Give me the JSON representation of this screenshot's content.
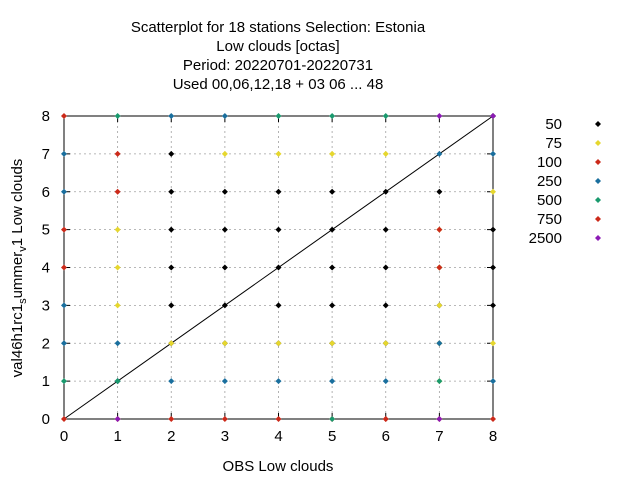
{
  "chart_data": {
    "type": "scatter",
    "title_lines": [
      "Scatterplot for   18 stations Selection: Estonia",
      "Low clouds [octas]",
      "Period: 20220701-20220731",
      "Used  00,06,12,18  + 03 06 ... 48"
    ],
    "xlabel": "OBS Low clouds",
    "ylabel": "val46h1rc1_summer_v1 Low clouds",
    "ylabel_parts": {
      "base": "val46h1rc1",
      "sub1": "s",
      "mid": "ummer",
      "sub2": "v",
      "tail": "1 Low clouds"
    },
    "xlim": [
      0,
      8
    ],
    "ylim": [
      0,
      8
    ],
    "x_ticks": [
      "0",
      "1",
      "2",
      "3",
      "4",
      "5",
      "6",
      "7",
      "8"
    ],
    "y_ticks": [
      "0",
      "1",
      "2",
      "3",
      "4",
      "5",
      "6",
      "7",
      "8"
    ],
    "grid": true,
    "diagonal": true,
    "legend_position": "right",
    "series": [
      {
        "name": "50",
        "color": "#000000",
        "points": [
          [
            1,
            1
          ],
          [
            2,
            2
          ],
          [
            3,
            3
          ],
          [
            4,
            4
          ],
          [
            5,
            5
          ],
          [
            6,
            6
          ],
          [
            2,
            3
          ],
          [
            2,
            4
          ],
          [
            2,
            5
          ],
          [
            2,
            6
          ],
          [
            2,
            7
          ],
          [
            3,
            4
          ],
          [
            3,
            5
          ],
          [
            3,
            6
          ],
          [
            4,
            3
          ],
          [
            4,
            5
          ],
          [
            4,
            6
          ],
          [
            5,
            3
          ],
          [
            5,
            4
          ],
          [
            5,
            6
          ],
          [
            6,
            3
          ],
          [
            6,
            4
          ],
          [
            6,
            5
          ],
          [
            7,
            3
          ],
          [
            7,
            4
          ],
          [
            7,
            6
          ],
          [
            8,
            3
          ],
          [
            8,
            4
          ],
          [
            8,
            5
          ],
          [
            8,
            8
          ],
          [
            3,
            2
          ],
          [
            4,
            2
          ],
          [
            5,
            2
          ],
          [
            6,
            2
          ],
          [
            7,
            2
          ]
        ]
      },
      {
        "name": "75",
        "color": "#e6d72e",
        "points": [
          [
            1,
            3
          ],
          [
            1,
            4
          ],
          [
            1,
            5
          ],
          [
            2,
            2
          ],
          [
            3,
            2
          ],
          [
            3,
            7
          ],
          [
            4,
            2
          ],
          [
            4,
            7
          ],
          [
            5,
            2
          ],
          [
            5,
            7
          ],
          [
            6,
            2
          ],
          [
            6,
            7
          ],
          [
            7,
            1
          ],
          [
            7,
            2
          ],
          [
            7,
            3
          ],
          [
            7,
            4
          ],
          [
            7,
            5
          ],
          [
            8,
            2
          ],
          [
            8,
            6
          ]
        ]
      },
      {
        "name": "100",
        "color": "#cc2a1a",
        "points": [
          [
            0,
            0
          ],
          [
            0,
            4
          ],
          [
            0,
            5
          ],
          [
            0,
            8
          ],
          [
            1,
            0
          ],
          [
            1,
            6
          ],
          [
            1,
            7
          ],
          [
            2,
            0
          ],
          [
            3,
            0
          ],
          [
            4,
            0
          ],
          [
            5,
            0
          ],
          [
            6,
            0
          ],
          [
            7,
            4
          ],
          [
            7,
            5
          ],
          [
            8,
            0
          ]
        ]
      },
      {
        "name": "250",
        "color": "#1a6f9e",
        "points": [
          [
            0,
            2
          ],
          [
            0,
            3
          ],
          [
            0,
            6
          ],
          [
            0,
            7
          ],
          [
            1,
            1
          ],
          [
            1,
            2
          ],
          [
            2,
            1
          ],
          [
            2,
            8
          ],
          [
            3,
            1
          ],
          [
            3,
            8
          ],
          [
            4,
            1
          ],
          [
            5,
            1
          ],
          [
            6,
            1
          ],
          [
            7,
            2
          ],
          [
            7,
            7
          ],
          [
            8,
            1
          ],
          [
            8,
            7
          ]
        ]
      },
      {
        "name": "500",
        "color": "#1a9a6e",
        "points": [
          [
            0,
            1
          ],
          [
            1,
            1
          ],
          [
            1,
            8
          ],
          [
            4,
            8
          ],
          [
            5,
            0
          ],
          [
            5,
            8
          ],
          [
            6,
            8
          ],
          [
            7,
            1
          ]
        ]
      },
      {
        "name": "750",
        "color": "#cc2a1a",
        "points": [
          [
            6,
            0
          ],
          [
            7,
            0
          ]
        ]
      },
      {
        "name": "2500",
        "color": "#8c1ab5",
        "points": [
          [
            1,
            0
          ],
          [
            7,
            0
          ],
          [
            7,
            8
          ],
          [
            8,
            8
          ]
        ]
      }
    ]
  }
}
